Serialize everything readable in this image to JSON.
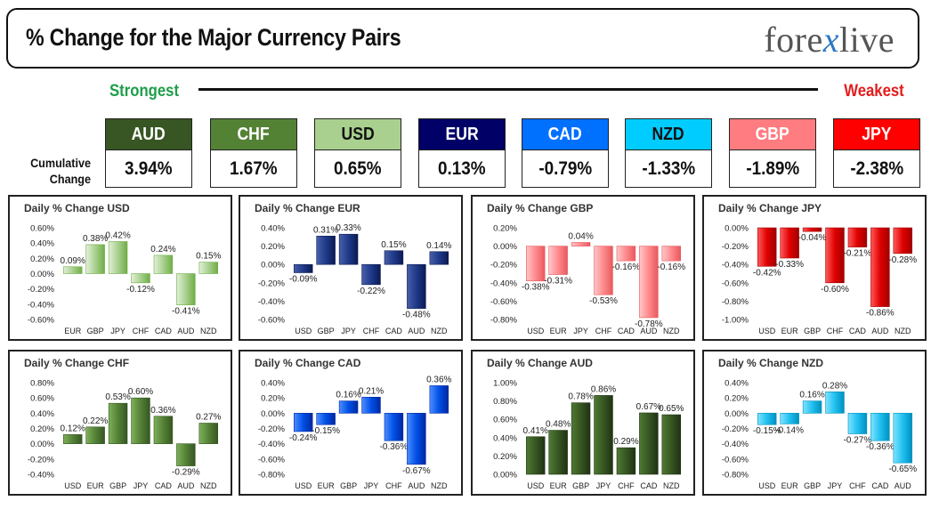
{
  "header": {
    "title": "% Change for the Major Currency Pairs",
    "logo_left": "fore",
    "logo_x": "x",
    "logo_right": "live"
  },
  "ranking": {
    "strongest_label": "Strongest",
    "weakest_label": "Weakest",
    "cumulative_label_line1": "Cumulative",
    "cumulative_label_line2": "Change"
  },
  "currencies": [
    {
      "name": "AUD",
      "value": "3.94%",
      "bg": "#375623",
      "fg": "#ffffff"
    },
    {
      "name": "CHF",
      "value": "1.67%",
      "bg": "#548235",
      "fg": "#ffffff"
    },
    {
      "name": "USD",
      "value": "0.65%",
      "bg": "#a9d08e",
      "fg": "#111111"
    },
    {
      "name": "EUR",
      "value": "0.13%",
      "bg": "#000066",
      "fg": "#ffffff"
    },
    {
      "name": "CAD",
      "value": "-0.79%",
      "bg": "#0070ff",
      "fg": "#ffffff"
    },
    {
      "name": "NZD",
      "value": "-1.33%",
      "bg": "#00ccff",
      "fg": "#111111"
    },
    {
      "name": "GBP",
      "value": "-1.89%",
      "bg": "#ff7c80",
      "fg": "#ffffff"
    },
    {
      "name": "JPY",
      "value": "-2.38%",
      "bg": "#ff0000",
      "fg": "#ffffff"
    }
  ],
  "chart_data": [
    {
      "type": "bar",
      "title": "Daily % Change USD",
      "categories": [
        "EUR",
        "GBP",
        "JPY",
        "CHF",
        "CAD",
        "AUD",
        "NZD"
      ],
      "values": [
        0.09,
        0.38,
        0.42,
        -0.12,
        0.24,
        -0.41,
        0.15
      ],
      "labels": [
        "0.09%",
        "0.38%",
        "0.42%",
        "-0.12%",
        "0.24%",
        "-0.41%",
        "0.15%"
      ],
      "ylim": [
        -0.6,
        0.6
      ],
      "ticks": [
        -0.6,
        -0.4,
        -0.2,
        0,
        0.2,
        0.4,
        0.6
      ],
      "tick_labels": [
        "-0.60%",
        "-0.40%",
        "-0.20%",
        "0.00%",
        "0.20%",
        "0.40%",
        "0.60%"
      ],
      "color_light": "#e2f0d9",
      "color": "#a9d08e",
      "color_dark": "#70ad47"
    },
    {
      "type": "bar",
      "title": "Daily % Change EUR",
      "categories": [
        "USD",
        "GBP",
        "JPY",
        "CHF",
        "CAD",
        "AUD",
        "NZD"
      ],
      "values": [
        -0.09,
        0.31,
        0.33,
        -0.22,
        0.15,
        -0.48,
        0.14
      ],
      "labels": [
        "-0.09%",
        "0.31%",
        "0.33%",
        "-0.22%",
        "0.15%",
        "-0.48%",
        "0.14%"
      ],
      "ylim": [
        -0.6,
        0.4
      ],
      "ticks": [
        -0.6,
        -0.4,
        -0.2,
        0,
        0.2,
        0.4
      ],
      "tick_labels": [
        "-0.60%",
        "-0.40%",
        "-0.20%",
        "0.00%",
        "0.20%",
        "0.40%"
      ],
      "color_light": "#4a5fa8",
      "color": "#1f3a8a",
      "color_dark": "#0b1a52"
    },
    {
      "type": "bar",
      "title": "Daily % Change GBP",
      "categories": [
        "USD",
        "EUR",
        "JPY",
        "CHF",
        "CAD",
        "AUD",
        "NZD"
      ],
      "values": [
        -0.38,
        -0.31,
        0.04,
        -0.53,
        -0.16,
        -0.78,
        -0.16
      ],
      "labels": [
        "-0.38%",
        "-0.31%",
        "0.04%",
        "-0.53%",
        "-0.16%",
        "-0.78%",
        "-0.16%"
      ],
      "ylim": [
        -0.8,
        0.2
      ],
      "ticks": [
        -0.8,
        -0.6,
        -0.4,
        -0.2,
        0,
        0.2
      ],
      "tick_labels": [
        "-0.80%",
        "-0.60%",
        "-0.40%",
        "-0.20%",
        "0.00%",
        "0.20%"
      ],
      "color_light": "#ffc7c9",
      "color": "#ff8a8d",
      "color_dark": "#e8595d"
    },
    {
      "type": "bar",
      "title": "Daily % Change JPY",
      "categories": [
        "USD",
        "EUR",
        "GBP",
        "CHF",
        "CAD",
        "AUD",
        "NZD"
      ],
      "values": [
        -0.42,
        -0.33,
        -0.04,
        -0.6,
        -0.21,
        -0.86,
        -0.28
      ],
      "labels": [
        "-0.42%",
        "-0.33%",
        "-0.04%",
        "-0.60%",
        "-0.21%",
        "-0.86%",
        "-0.28%"
      ],
      "ylim": [
        -1.0,
        0
      ],
      "ticks": [
        -1.0,
        -0.8,
        -0.6,
        -0.4,
        -0.2,
        0
      ],
      "tick_labels": [
        "-1.00%",
        "-0.80%",
        "-0.60%",
        "-0.40%",
        "-0.20%",
        "0.00%"
      ],
      "color_light": "#ff5a5a",
      "color": "#e00000",
      "color_dark": "#a00000"
    },
    {
      "type": "bar",
      "title": "Daily % Change CHF",
      "categories": [
        "USD",
        "EUR",
        "GBP",
        "JPY",
        "CAD",
        "AUD",
        "NZD"
      ],
      "values": [
        0.12,
        0.22,
        0.53,
        0.6,
        0.36,
        -0.29,
        0.27
      ],
      "labels": [
        "0.12%",
        "0.22%",
        "0.53%",
        "0.60%",
        "0.36%",
        "-0.29%",
        "0.27%"
      ],
      "ylim": [
        -0.4,
        0.8
      ],
      "ticks": [
        -0.4,
        -0.2,
        0,
        0.2,
        0.4,
        0.6,
        0.8
      ],
      "tick_labels": [
        "-0.40%",
        "-0.20%",
        "0.00%",
        "0.20%",
        "0.40%",
        "0.60%",
        "0.80%"
      ],
      "color_light": "#7fb05a",
      "color": "#548235",
      "color_dark": "#375623"
    },
    {
      "type": "bar",
      "title": "Daily % Change CAD",
      "categories": [
        "USD",
        "EUR",
        "GBP",
        "JPY",
        "CHF",
        "AUD",
        "NZD"
      ],
      "values": [
        -0.24,
        -0.15,
        0.16,
        0.21,
        -0.36,
        -0.67,
        0.36
      ],
      "labels": [
        "-0.24%",
        "-0.15%",
        "0.16%",
        "0.21%",
        "-0.36%",
        "-0.67%",
        "0.36%"
      ],
      "ylim": [
        -0.8,
        0.4
      ],
      "ticks": [
        -0.8,
        -0.6,
        -0.4,
        -0.2,
        0,
        0.2,
        0.4
      ],
      "tick_labels": [
        "-0.80%",
        "-0.60%",
        "-0.40%",
        "-0.20%",
        "0.00%",
        "0.20%",
        "0.40%"
      ],
      "color_light": "#4d8dff",
      "color": "#0050e6",
      "color_dark": "#0028a0"
    },
    {
      "type": "bar",
      "title": "Daily % Change AUD",
      "categories": [
        "USD",
        "EUR",
        "GBP",
        "JPY",
        "CHF",
        "CAD",
        "NZD"
      ],
      "values": [
        0.41,
        0.48,
        0.78,
        0.86,
        0.29,
        0.67,
        0.65
      ],
      "labels": [
        "0.41%",
        "0.48%",
        "0.78%",
        "0.86%",
        "0.29%",
        "0.67%",
        "0.65%"
      ],
      "ylim": [
        0,
        1.0
      ],
      "ticks": [
        0,
        0.2,
        0.4,
        0.6,
        0.8,
        1.0
      ],
      "tick_labels": [
        "0.00%",
        "0.20%",
        "0.40%",
        "0.60%",
        "0.80%",
        "1.00%"
      ],
      "color_light": "#4f7a32",
      "color": "#375623",
      "color_dark": "#1f3312"
    },
    {
      "type": "bar",
      "title": "Daily % Change NZD",
      "categories": [
        "USD",
        "EUR",
        "GBP",
        "JPY",
        "CHF",
        "CAD",
        "AUD"
      ],
      "values": [
        -0.15,
        -0.14,
        0.16,
        0.28,
        -0.27,
        -0.36,
        -0.65
      ],
      "labels": [
        "-0.15%",
        "-0.14%",
        "0.16%",
        "0.28%",
        "-0.27%",
        "-0.36%",
        "-0.65%"
      ],
      "ylim": [
        -0.8,
        0.4
      ],
      "ticks": [
        -0.8,
        -0.6,
        -0.4,
        -0.2,
        0,
        0.2,
        0.4
      ],
      "tick_labels": [
        "-0.80%",
        "-0.60%",
        "-0.40%",
        "-0.20%",
        "0.00%",
        "0.20%",
        "0.40%"
      ],
      "color_light": "#7fe3ff",
      "color": "#20c0f0",
      "color_dark": "#0090c0"
    }
  ]
}
